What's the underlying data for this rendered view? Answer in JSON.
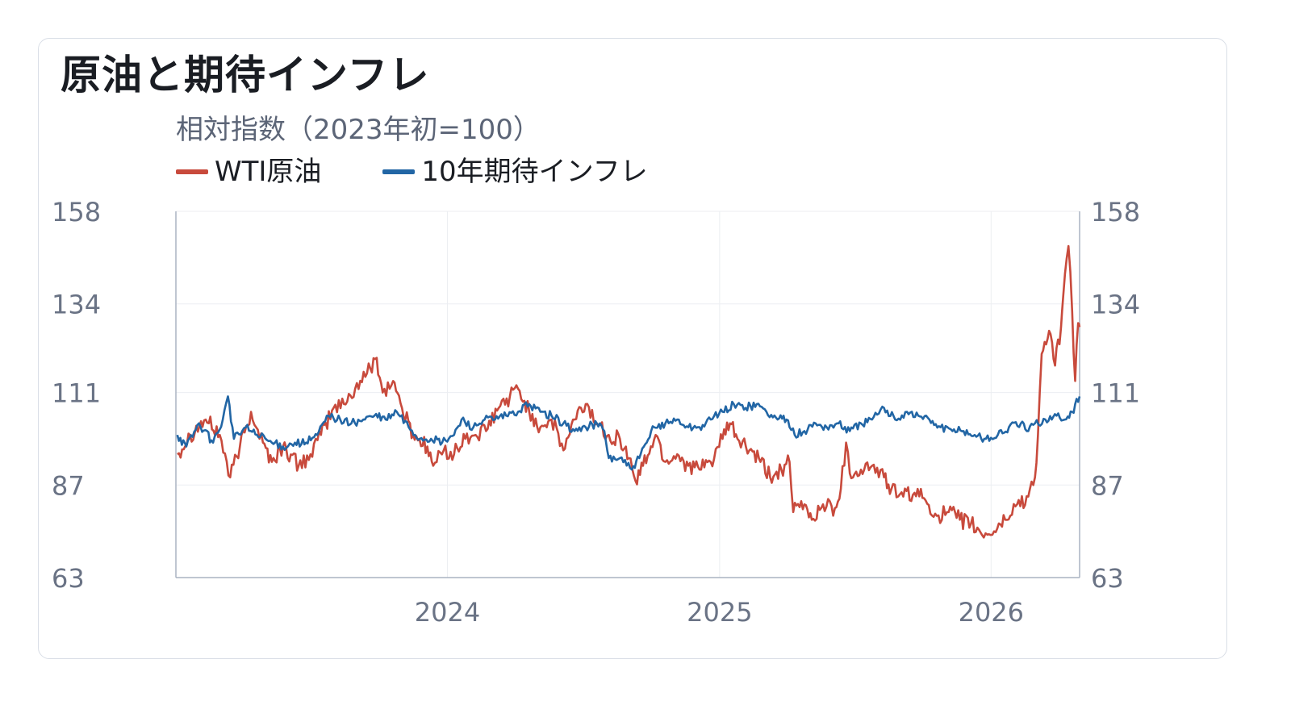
{
  "title": "原油と期待インフレ",
  "chart_data": {
    "type": "line",
    "title": "原油と期待インフレ",
    "subtitle": "相対指数（2023年初=100）",
    "x_range": [
      "2023-01-01",
      "2026-04-30"
    ],
    "x_ticks": [
      "2024",
      "2025",
      "2026"
    ],
    "ylim": [
      63,
      158
    ],
    "y_ticks": [
      63,
      87,
      111,
      134,
      158
    ],
    "y_ticks_right": [
      63,
      87,
      111,
      134,
      158
    ],
    "grid": true,
    "legend_position": "top-left",
    "series": [
      {
        "name": "WTI原油",
        "color": "#c84a3c",
        "points": [
          [
            "2023-01-03",
            95
          ],
          [
            "2023-01-20",
            100
          ],
          [
            "2023-02-10",
            104
          ],
          [
            "2023-03-01",
            100
          ],
          [
            "2023-03-15",
            89
          ],
          [
            "2023-03-28",
            97
          ],
          [
            "2023-04-12",
            106
          ],
          [
            "2023-04-28",
            98
          ],
          [
            "2023-05-10",
            93
          ],
          [
            "2023-05-25",
            97
          ],
          [
            "2023-06-15",
            92
          ],
          [
            "2023-07-01",
            95
          ],
          [
            "2023-07-15",
            100
          ],
          [
            "2023-08-01",
            107
          ],
          [
            "2023-08-15",
            108
          ],
          [
            "2023-08-30",
            112
          ],
          [
            "2023-09-15",
            116
          ],
          [
            "2023-09-28",
            120
          ],
          [
            "2023-10-06",
            111
          ],
          [
            "2023-10-20",
            114
          ],
          [
            "2023-11-01",
            107
          ],
          [
            "2023-11-16",
            100
          ],
          [
            "2023-12-05",
            97
          ],
          [
            "2023-12-13",
            92
          ],
          [
            "2023-12-27",
            96
          ],
          [
            "2024-01-10",
            95
          ],
          [
            "2024-01-25",
            99
          ],
          [
            "2024-02-08",
            100
          ],
          [
            "2024-02-22",
            101
          ],
          [
            "2024-03-10",
            107
          ],
          [
            "2024-03-25",
            110
          ],
          [
            "2024-04-05",
            112
          ],
          [
            "2024-04-20",
            106
          ],
          [
            "2024-05-05",
            102
          ],
          [
            "2024-05-20",
            104
          ],
          [
            "2024-06-05",
            96
          ],
          [
            "2024-06-20",
            104
          ],
          [
            "2024-07-05",
            108
          ],
          [
            "2024-07-20",
            103
          ],
          [
            "2024-08-05",
            100
          ],
          [
            "2024-08-20",
            99
          ],
          [
            "2024-09-01",
            94
          ],
          [
            "2024-09-10",
            88
          ],
          [
            "2024-09-20",
            92
          ],
          [
            "2024-10-07",
            100
          ],
          [
            "2024-10-20",
            93
          ],
          [
            "2024-11-05",
            95
          ],
          [
            "2024-11-20",
            92
          ],
          [
            "2024-12-05",
            91
          ],
          [
            "2024-12-20",
            93
          ],
          [
            "2025-01-05",
            99
          ],
          [
            "2025-01-15",
            103
          ],
          [
            "2025-01-25",
            99
          ],
          [
            "2025-02-10",
            96
          ],
          [
            "2025-02-25",
            93
          ],
          [
            "2025-03-10",
            89
          ],
          [
            "2025-03-25",
            91
          ],
          [
            "2025-04-05",
            93
          ],
          [
            "2025-04-10",
            80
          ],
          [
            "2025-04-25",
            82
          ],
          [
            "2025-05-05",
            78
          ],
          [
            "2025-05-20",
            82
          ],
          [
            "2025-06-05",
            81
          ],
          [
            "2025-06-13",
            86
          ],
          [
            "2025-06-20",
            98
          ],
          [
            "2025-06-25",
            90
          ],
          [
            "2025-07-10",
            91
          ],
          [
            "2025-07-25",
            92
          ],
          [
            "2025-08-10",
            89
          ],
          [
            "2025-08-20",
            86
          ],
          [
            "2025-09-05",
            84
          ],
          [
            "2025-09-20",
            85
          ],
          [
            "2025-10-05",
            83
          ],
          [
            "2025-10-20",
            79
          ],
          [
            "2025-11-05",
            80
          ],
          [
            "2025-11-20",
            78
          ],
          [
            "2025-12-05",
            77
          ],
          [
            "2025-12-20",
            74
          ],
          [
            "2026-01-05",
            75
          ],
          [
            "2026-01-20",
            78
          ],
          [
            "2026-02-05",
            82
          ],
          [
            "2026-02-20",
            84
          ],
          [
            "2026-03-01",
            89
          ],
          [
            "2026-03-05",
            100
          ],
          [
            "2026-03-10",
            121
          ],
          [
            "2026-03-20",
            127
          ],
          [
            "2026-03-28",
            118
          ],
          [
            "2026-04-05",
            128
          ],
          [
            "2026-04-08",
            136
          ],
          [
            "2026-04-15",
            149
          ],
          [
            "2026-04-20",
            132
          ],
          [
            "2026-04-24",
            114
          ],
          [
            "2026-04-28",
            129
          ],
          [
            "2026-04-30",
            128
          ]
        ]
      },
      {
        "name": "10年期待インフレ",
        "color": "#2266a5",
        "points": [
          [
            "2023-01-03",
            100
          ],
          [
            "2023-01-15",
            97
          ],
          [
            "2023-02-01",
            103
          ],
          [
            "2023-02-20",
            98
          ],
          [
            "2023-03-05",
            104
          ],
          [
            "2023-03-12",
            110
          ],
          [
            "2023-03-20",
            99
          ],
          [
            "2023-04-05",
            102
          ],
          [
            "2023-04-20",
            100
          ],
          [
            "2023-05-10",
            98
          ],
          [
            "2023-05-25",
            97
          ],
          [
            "2023-06-10",
            98
          ],
          [
            "2023-06-25",
            98
          ],
          [
            "2023-07-10",
            100
          ],
          [
            "2023-07-25",
            105
          ],
          [
            "2023-08-10",
            104
          ],
          [
            "2023-08-25",
            103
          ],
          [
            "2023-09-10",
            104
          ],
          [
            "2023-09-25",
            105
          ],
          [
            "2023-10-10",
            104
          ],
          [
            "2023-10-25",
            106
          ],
          [
            "2023-11-10",
            102
          ],
          [
            "2023-11-25",
            99
          ],
          [
            "2023-12-10",
            99
          ],
          [
            "2023-12-25",
            98
          ],
          [
            "2024-01-10",
            100
          ],
          [
            "2024-01-20",
            104
          ],
          [
            "2024-02-05",
            102
          ],
          [
            "2024-02-20",
            104
          ],
          [
            "2024-03-05",
            104
          ],
          [
            "2024-03-20",
            105
          ],
          [
            "2024-04-05",
            106
          ],
          [
            "2024-04-20",
            108
          ],
          [
            "2024-05-05",
            106
          ],
          [
            "2024-05-20",
            105
          ],
          [
            "2024-06-05",
            103
          ],
          [
            "2024-06-20",
            101
          ],
          [
            "2024-07-05",
            102
          ],
          [
            "2024-07-20",
            103
          ],
          [
            "2024-07-30",
            101
          ],
          [
            "2024-08-05",
            94
          ],
          [
            "2024-08-20",
            94
          ],
          [
            "2024-09-05",
            91
          ],
          [
            "2024-09-15",
            94
          ],
          [
            "2024-09-25",
            98
          ],
          [
            "2024-10-05",
            102
          ],
          [
            "2024-10-20",
            103
          ],
          [
            "2024-11-05",
            104
          ],
          [
            "2024-11-20",
            102
          ],
          [
            "2024-12-05",
            102
          ],
          [
            "2024-12-20",
            104
          ],
          [
            "2025-01-05",
            106
          ],
          [
            "2025-01-20",
            108
          ],
          [
            "2025-02-05",
            107
          ],
          [
            "2025-02-20",
            108
          ],
          [
            "2025-03-05",
            106
          ],
          [
            "2025-03-20",
            104
          ],
          [
            "2025-03-28",
            105
          ],
          [
            "2025-04-05",
            102
          ],
          [
            "2025-04-12",
            100
          ],
          [
            "2025-04-25",
            101
          ],
          [
            "2025-05-10",
            103
          ],
          [
            "2025-05-25",
            102
          ],
          [
            "2025-06-10",
            103
          ],
          [
            "2025-06-25",
            101
          ],
          [
            "2025-07-10",
            103
          ],
          [
            "2025-07-25",
            104
          ],
          [
            "2025-08-10",
            107
          ],
          [
            "2025-08-25",
            104
          ],
          [
            "2025-09-10",
            106
          ],
          [
            "2025-09-25",
            105
          ],
          [
            "2025-10-10",
            104
          ],
          [
            "2025-10-25",
            102
          ],
          [
            "2025-11-10",
            101
          ],
          [
            "2025-11-25",
            101
          ],
          [
            "2025-12-10",
            100
          ],
          [
            "2025-12-25",
            99
          ],
          [
            "2026-01-10",
            100
          ],
          [
            "2026-01-25",
            102
          ],
          [
            "2026-02-10",
            103
          ],
          [
            "2026-02-20",
            101
          ],
          [
            "2026-03-01",
            103
          ],
          [
            "2026-03-15",
            104
          ],
          [
            "2026-03-30",
            105
          ],
          [
            "2026-04-10",
            104
          ],
          [
            "2026-04-20",
            106
          ],
          [
            "2026-04-30",
            110
          ]
        ]
      }
    ]
  }
}
